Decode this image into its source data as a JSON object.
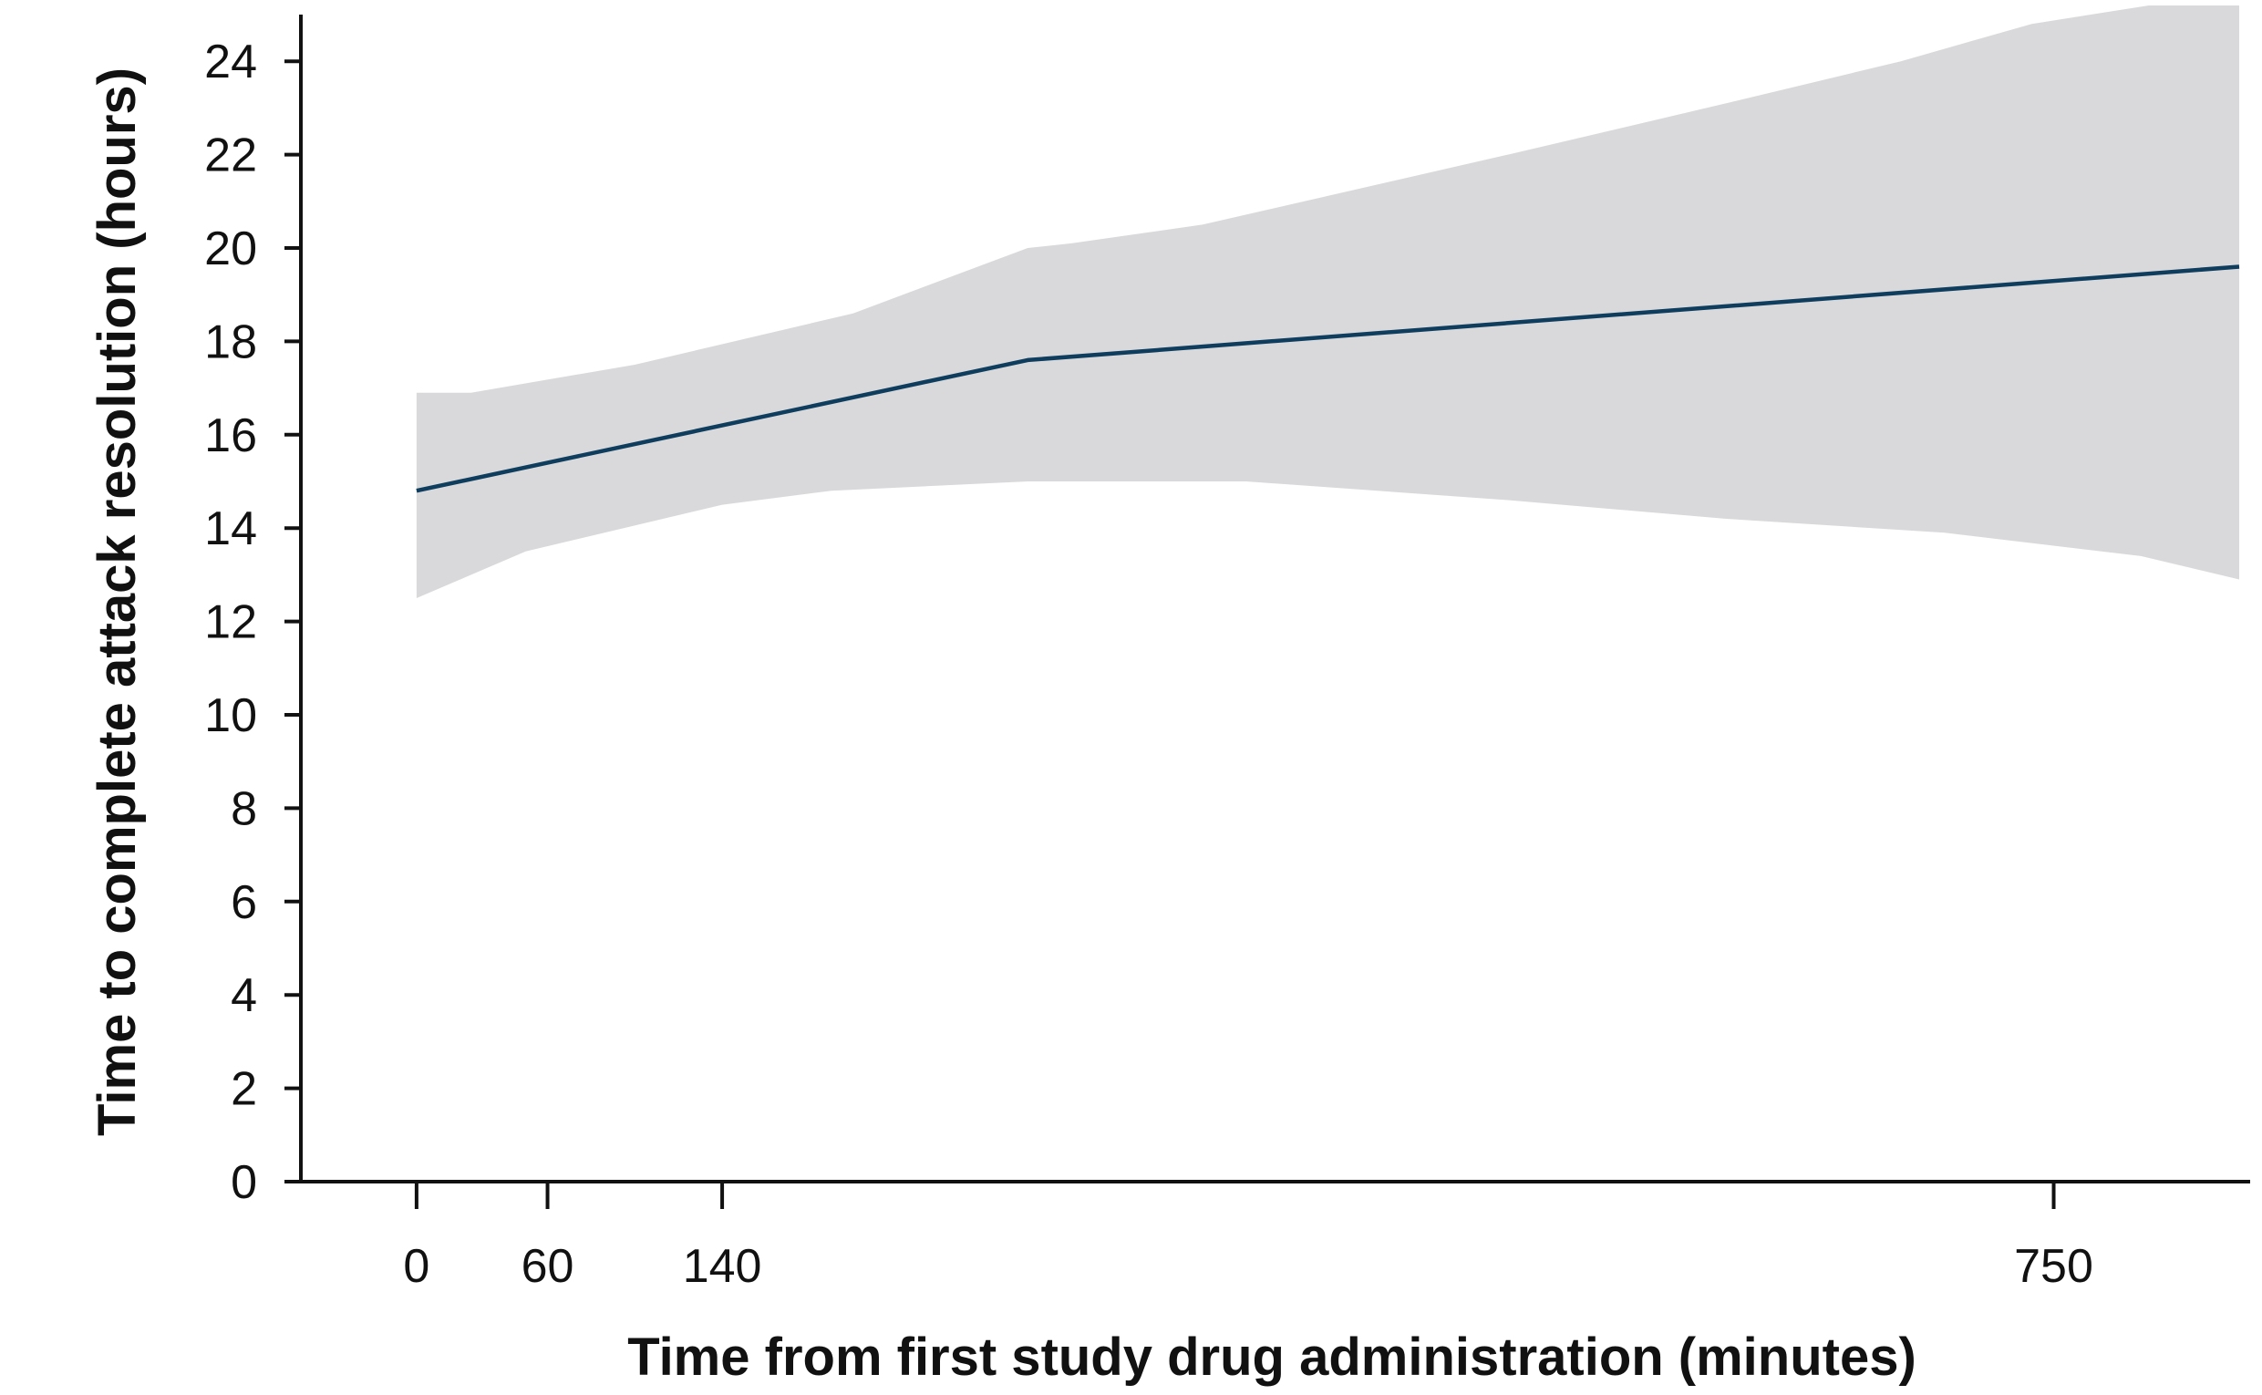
{
  "chart_data": {
    "type": "line",
    "title": "",
    "xlabel": "Time from first study drug administration (minutes)",
    "ylabel": "Time to complete attack resolution (hours)",
    "xlim": [
      -53,
      840
    ],
    "ylim": [
      0,
      25
    ],
    "x_ticks": [
      0,
      60,
      140,
      750
    ],
    "y_ticks": [
      0,
      2,
      4,
      6,
      8,
      10,
      12,
      14,
      16,
      18,
      20,
      22,
      24
    ],
    "grid": false,
    "legend": "none",
    "series": [
      {
        "x": [
          0,
          280,
          835
        ],
        "y": [
          14.8,
          17.6,
          19.6
        ],
        "color": "#0e3d5e"
      }
    ],
    "confidence_band": {
      "color": "#d9d8da",
      "upper": {
        "x": [
          0,
          25,
          100,
          200,
          280,
          300,
          360,
          500,
          600,
          680,
          740,
          835
        ],
        "y": [
          16.9,
          16.9,
          17.5,
          18.6,
          20.0,
          20.1,
          20.5,
          22.0,
          23.1,
          24.0,
          24.8,
          25.5
        ]
      },
      "lower": {
        "x": [
          0,
          50,
          140,
          190,
          280,
          380,
          500,
          600,
          700,
          790,
          835
        ],
        "y": [
          12.5,
          13.5,
          14.5,
          14.8,
          15.0,
          15.0,
          14.6,
          14.2,
          13.9,
          13.4,
          12.9
        ]
      }
    }
  }
}
